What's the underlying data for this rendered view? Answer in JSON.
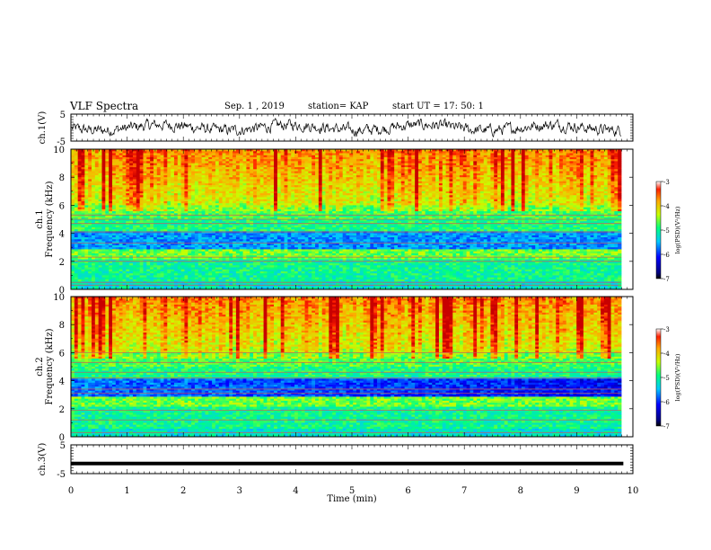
{
  "header": {
    "title": "VLF Spectra",
    "date": "Sep. 1 , 2019",
    "station": "station= KAP",
    "start": "start UT =   17: 50: 1"
  },
  "chart_data": [
    {
      "type": "line",
      "name": "ch1-waveform",
      "ylabel": "ch.1(V)",
      "ylim": [
        -5,
        5
      ],
      "yticks": [
        "5",
        "-5"
      ],
      "xlim": [
        0,
        10
      ],
      "note_values": "noisy waveform oscillating roughly between -3 and +3 V"
    },
    {
      "type": "heatmap",
      "name": "ch1-spectrogram",
      "ylabel": "ch.1\nFrequency (kHz)",
      "ylim": [
        0,
        10
      ],
      "yticks": [
        "0",
        "2",
        "4",
        "6",
        "8",
        "10"
      ],
      "xlim": [
        0,
        9.83
      ],
      "colorbar": {
        "label": "log(PSD)(V²/Hz)",
        "range": [
          -7,
          -3
        ],
        "ticks": [
          "-3",
          "-4",
          "-5",
          "-6",
          "-7"
        ]
      }
    },
    {
      "type": "heatmap",
      "name": "ch2-spectrogram",
      "ylabel": "ch.2\nFrequency (kHz)",
      "ylim": [
        0,
        10
      ],
      "yticks": [
        "0",
        "2",
        "4",
        "6",
        "8",
        "10"
      ],
      "xlim": [
        0,
        9.83
      ],
      "colorbar": {
        "label": "log(PSD)(V²/Hz)",
        "range": [
          -7,
          -3
        ],
        "ticks": [
          "-3",
          "-4",
          "-5",
          "-6",
          "-7"
        ]
      }
    },
    {
      "type": "line",
      "name": "ch3-waveform",
      "ylabel": "ch.3(V)",
      "ylim": [
        -5,
        5
      ],
      "yticks": [
        "5",
        "-5"
      ],
      "xlim": [
        0,
        10
      ],
      "x": [
        0,
        9.83
      ],
      "y": [
        -1.5,
        -1.5
      ]
    }
  ],
  "xaxis": {
    "label": "Time (min)",
    "range": [
      0,
      10
    ],
    "ticks": [
      "0",
      "1",
      "2",
      "3",
      "4",
      "5",
      "6",
      "7",
      "8",
      "9",
      "10"
    ]
  }
}
